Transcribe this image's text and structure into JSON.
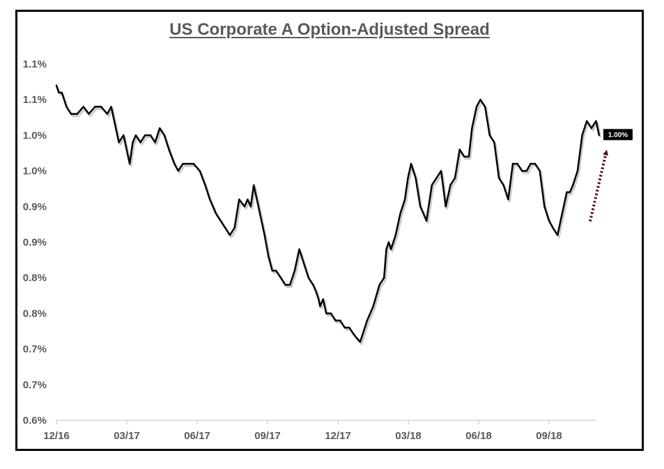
{
  "chart_data": {
    "type": "line",
    "title": "US Corporate A Option-Adjusted Spread",
    "xlabel": "",
    "ylabel": "",
    "ylim": [
      0.6,
      1.1
    ],
    "ytick_labels": [
      "1.1%",
      "1.1%",
      "1.0%",
      "1.0%",
      "0.9%",
      "0.9%",
      "0.8%",
      "0.8%",
      "0.7%",
      "0.7%",
      "0.6%"
    ],
    "xtick_labels": [
      "12/16",
      "03/17",
      "06/17",
      "09/17",
      "12/17",
      "03/18",
      "06/18",
      "09/18"
    ],
    "grid": false,
    "legend": "none",
    "series": [
      {
        "color": "#000000",
        "x": [
          "2016-12-01",
          "2016-12-04",
          "2016-12-08",
          "2016-12-14",
          "2016-12-20",
          "2016-12-28",
          "2017-01-05",
          "2017-01-12",
          "2017-01-20",
          "2017-01-28",
          "2017-02-05",
          "2017-02-10",
          "2017-02-14",
          "2017-02-20",
          "2017-02-26",
          "2017-03-02",
          "2017-03-06",
          "2017-03-10",
          "2017-03-14",
          "2017-03-20",
          "2017-03-26",
          "2017-04-02",
          "2017-04-08",
          "2017-04-14",
          "2017-04-20",
          "2017-04-26",
          "2017-05-03",
          "2017-05-08",
          "2017-05-14",
          "2017-05-20",
          "2017-05-28",
          "2017-06-05",
          "2017-06-12",
          "2017-06-18",
          "2017-06-26",
          "2017-07-02",
          "2017-07-08",
          "2017-07-14",
          "2017-07-20",
          "2017-07-26",
          "2017-08-02",
          "2017-08-06",
          "2017-08-10",
          "2017-08-14",
          "2017-08-18",
          "2017-08-22",
          "2017-08-28",
          "2017-09-02",
          "2017-09-07",
          "2017-09-12",
          "2017-09-18",
          "2017-09-24",
          "2017-09-30",
          "2017-10-06",
          "2017-10-12",
          "2017-10-18",
          "2017-10-24",
          "2017-10-30",
          "2017-11-03",
          "2017-11-06",
          "2017-11-08",
          "2017-11-12",
          "2017-11-16",
          "2017-11-22",
          "2017-11-28",
          "2017-12-04",
          "2017-12-10",
          "2017-12-16",
          "2017-12-22",
          "2017-12-30",
          "2018-01-08",
          "2018-01-16",
          "2018-01-24",
          "2018-01-30",
          "2018-02-02",
          "2018-02-05",
          "2018-02-08",
          "2018-02-14",
          "2018-02-20",
          "2018-02-26",
          "2018-03-02",
          "2018-03-06",
          "2018-03-12",
          "2018-03-18",
          "2018-03-22",
          "2018-03-26",
          "2018-04-02",
          "2018-04-08",
          "2018-04-14",
          "2018-04-20",
          "2018-04-26",
          "2018-05-02",
          "2018-05-08",
          "2018-05-14",
          "2018-05-20",
          "2018-05-24",
          "2018-05-30",
          "2018-06-04",
          "2018-06-10",
          "2018-06-16",
          "2018-06-22",
          "2018-06-28",
          "2018-07-04",
          "2018-07-10",
          "2018-07-16",
          "2018-07-22",
          "2018-07-28",
          "2018-08-03",
          "2018-08-08",
          "2018-08-14",
          "2018-08-20",
          "2018-08-26",
          "2018-09-01",
          "2018-09-06",
          "2018-09-12",
          "2018-09-18",
          "2018-09-24",
          "2018-09-28",
          "2018-10-02",
          "2018-10-08",
          "2018-10-14",
          "2018-10-20",
          "2018-10-26",
          "2018-11-01",
          "2018-11-05"
        ],
        "y": [
          1.07,
          1.06,
          1.06,
          1.04,
          1.03,
          1.03,
          1.04,
          1.03,
          1.04,
          1.04,
          1.03,
          1.04,
          1.02,
          0.99,
          1.0,
          0.98,
          0.96,
          0.99,
          1.0,
          0.99,
          1.0,
          1.0,
          0.99,
          1.01,
          1.0,
          0.98,
          0.96,
          0.95,
          0.96,
          0.96,
          0.96,
          0.95,
          0.93,
          0.91,
          0.89,
          0.88,
          0.87,
          0.86,
          0.87,
          0.91,
          0.9,
          0.91,
          0.9,
          0.93,
          0.91,
          0.89,
          0.86,
          0.83,
          0.81,
          0.81,
          0.8,
          0.79,
          0.79,
          0.81,
          0.84,
          0.82,
          0.8,
          0.79,
          0.78,
          0.77,
          0.76,
          0.77,
          0.75,
          0.75,
          0.74,
          0.74,
          0.73,
          0.73,
          0.72,
          0.71,
          0.74,
          0.76,
          0.79,
          0.8,
          0.84,
          0.85,
          0.84,
          0.86,
          0.89,
          0.91,
          0.94,
          0.96,
          0.94,
          0.9,
          0.89,
          0.88,
          0.93,
          0.94,
          0.95,
          0.9,
          0.93,
          0.94,
          0.98,
          0.97,
          0.97,
          1.01,
          1.04,
          1.05,
          1.04,
          1.0,
          0.99,
          0.94,
          0.93,
          0.91,
          0.96,
          0.96,
          0.95,
          0.95,
          0.96,
          0.96,
          0.95,
          0.9,
          0.88,
          0.87,
          0.86,
          0.89,
          0.92,
          0.92,
          0.93,
          0.95,
          1.0,
          1.02,
          1.01,
          1.02,
          1.0
        ]
      }
    ],
    "annotations": [
      {
        "text": "1.00%",
        "type": "last-value-callout",
        "background": "#000000"
      },
      {
        "type": "dotted-arrow",
        "color": "#4a1012",
        "direction": "up"
      }
    ]
  }
}
